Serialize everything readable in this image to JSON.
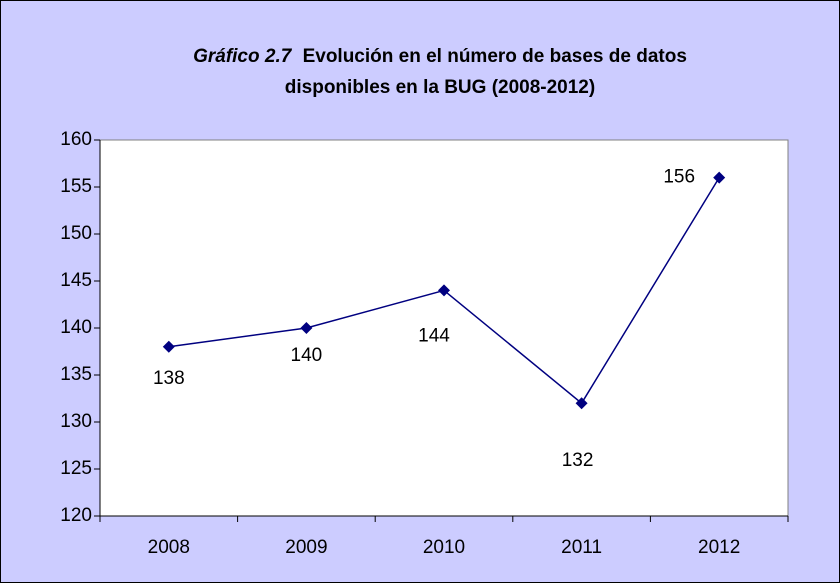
{
  "chart_data": {
    "type": "line",
    "title": [
      "Gráfico 2.7",
      "Evolución en el número de bases de datos",
      "disponibles en la BUG (2008-2012)"
    ],
    "categories": [
      "2008",
      "2009",
      "2010",
      "2011",
      "2012"
    ],
    "values": [
      138,
      140,
      144,
      132,
      156
    ],
    "color": "#000080",
    "ylim": [
      120,
      160
    ],
    "yticks": [
      120,
      125,
      130,
      135,
      140,
      145,
      150,
      155,
      160
    ],
    "grid": false
  }
}
